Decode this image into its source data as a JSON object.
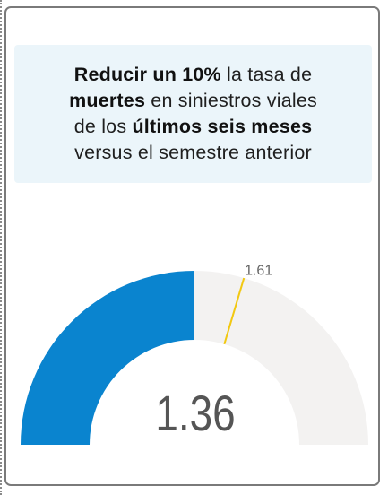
{
  "headline": {
    "line1_bold": "Reducir un 10%",
    "line1_rest": " la tasa de",
    "line2_bold": "muertes",
    "line2_rest": " en siniestros viales",
    "line3_pre": "de los ",
    "line3_bold": "últimos seis meses",
    "line4": "versus el semestre anterior"
  },
  "colors": {
    "fill": "#0a84cf",
    "track": "#f3f2f1",
    "target": "#f2c811",
    "value_text": "#555555",
    "target_text": "#666666"
  },
  "chart_data": {
    "type": "gauge",
    "value": 1.36,
    "value_label": "1.36",
    "target": 1.61,
    "target_label": "1.61",
    "min": 0,
    "max": 2.72
  }
}
